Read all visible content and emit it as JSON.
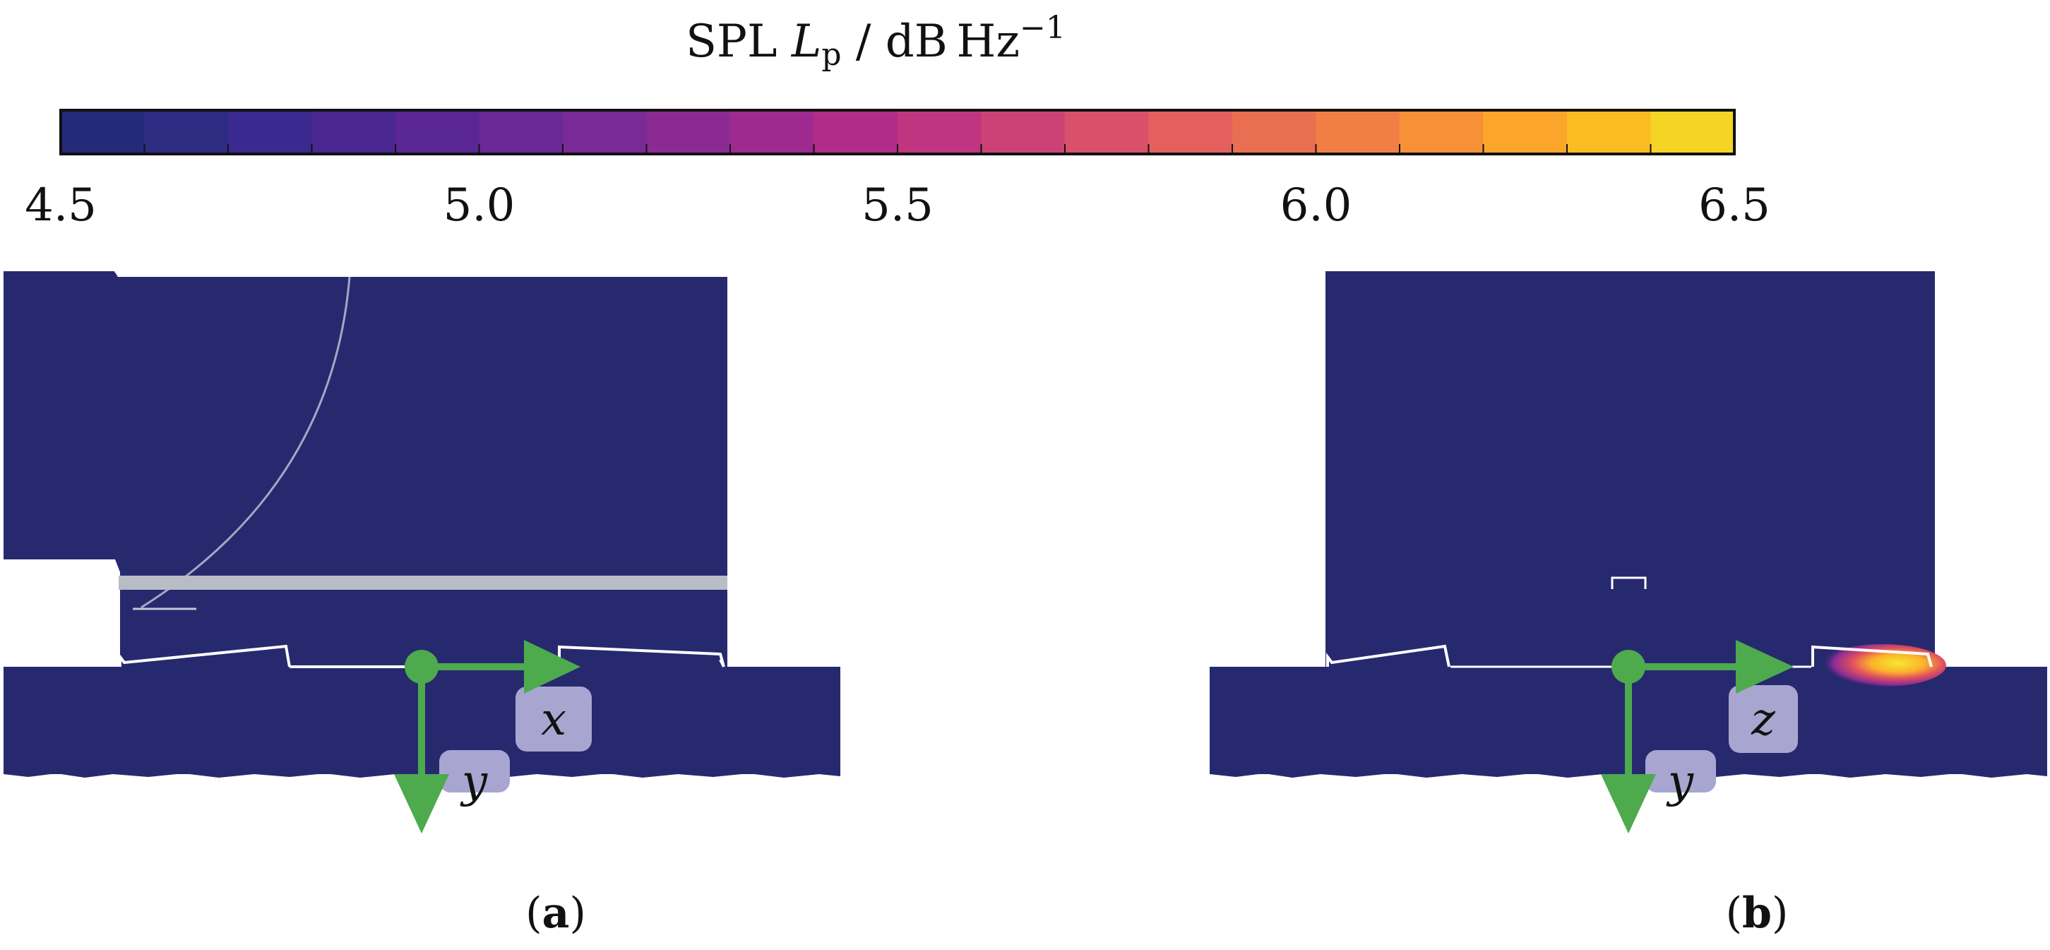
{
  "colorbar": {
    "title": "SPL Lp / dB Hz",
    "title_parts": {
      "prefix": "SPL ",
      "symbol": "L",
      "subscript": "p",
      "unit": " / dB Hz",
      "superscript": "−1"
    },
    "ticks": [
      "4.5",
      "5.0",
      "5.5",
      "6.0",
      "6.5"
    ],
    "min": 4.5,
    "max": 6.5,
    "bands": 20,
    "colors": [
      "#252a78",
      "#2d2c83",
      "#3a2a8f",
      "#4b2792",
      "#5a2694",
      "#6a2796",
      "#7a2a96",
      "#8c2a94",
      "#9f2a8f",
      "#b02c88",
      "#c0357f",
      "#cd4276",
      "#d9506b",
      "#e3605f",
      "#ea6e52",
      "#f17f45",
      "#f79138",
      "#fba62b",
      "#fbbc23",
      "#f6d425"
    ]
  },
  "panels": [
    {
      "label": "(a)",
      "label_parts": {
        "open": "(",
        "letter": "a",
        "close": ")"
      },
      "axis_h": "x",
      "axis_v": "y"
    },
    {
      "label": "(b)",
      "label_parts": {
        "open": "(",
        "letter": "b",
        "close": ")"
      },
      "axis_h": "z",
      "axis_v": "y"
    }
  ],
  "colors": {
    "field": "#27296f",
    "arrow": "#4daa4d",
    "axis_box": "#a8a6d0",
    "gray_bar": "#b9bcc4"
  }
}
